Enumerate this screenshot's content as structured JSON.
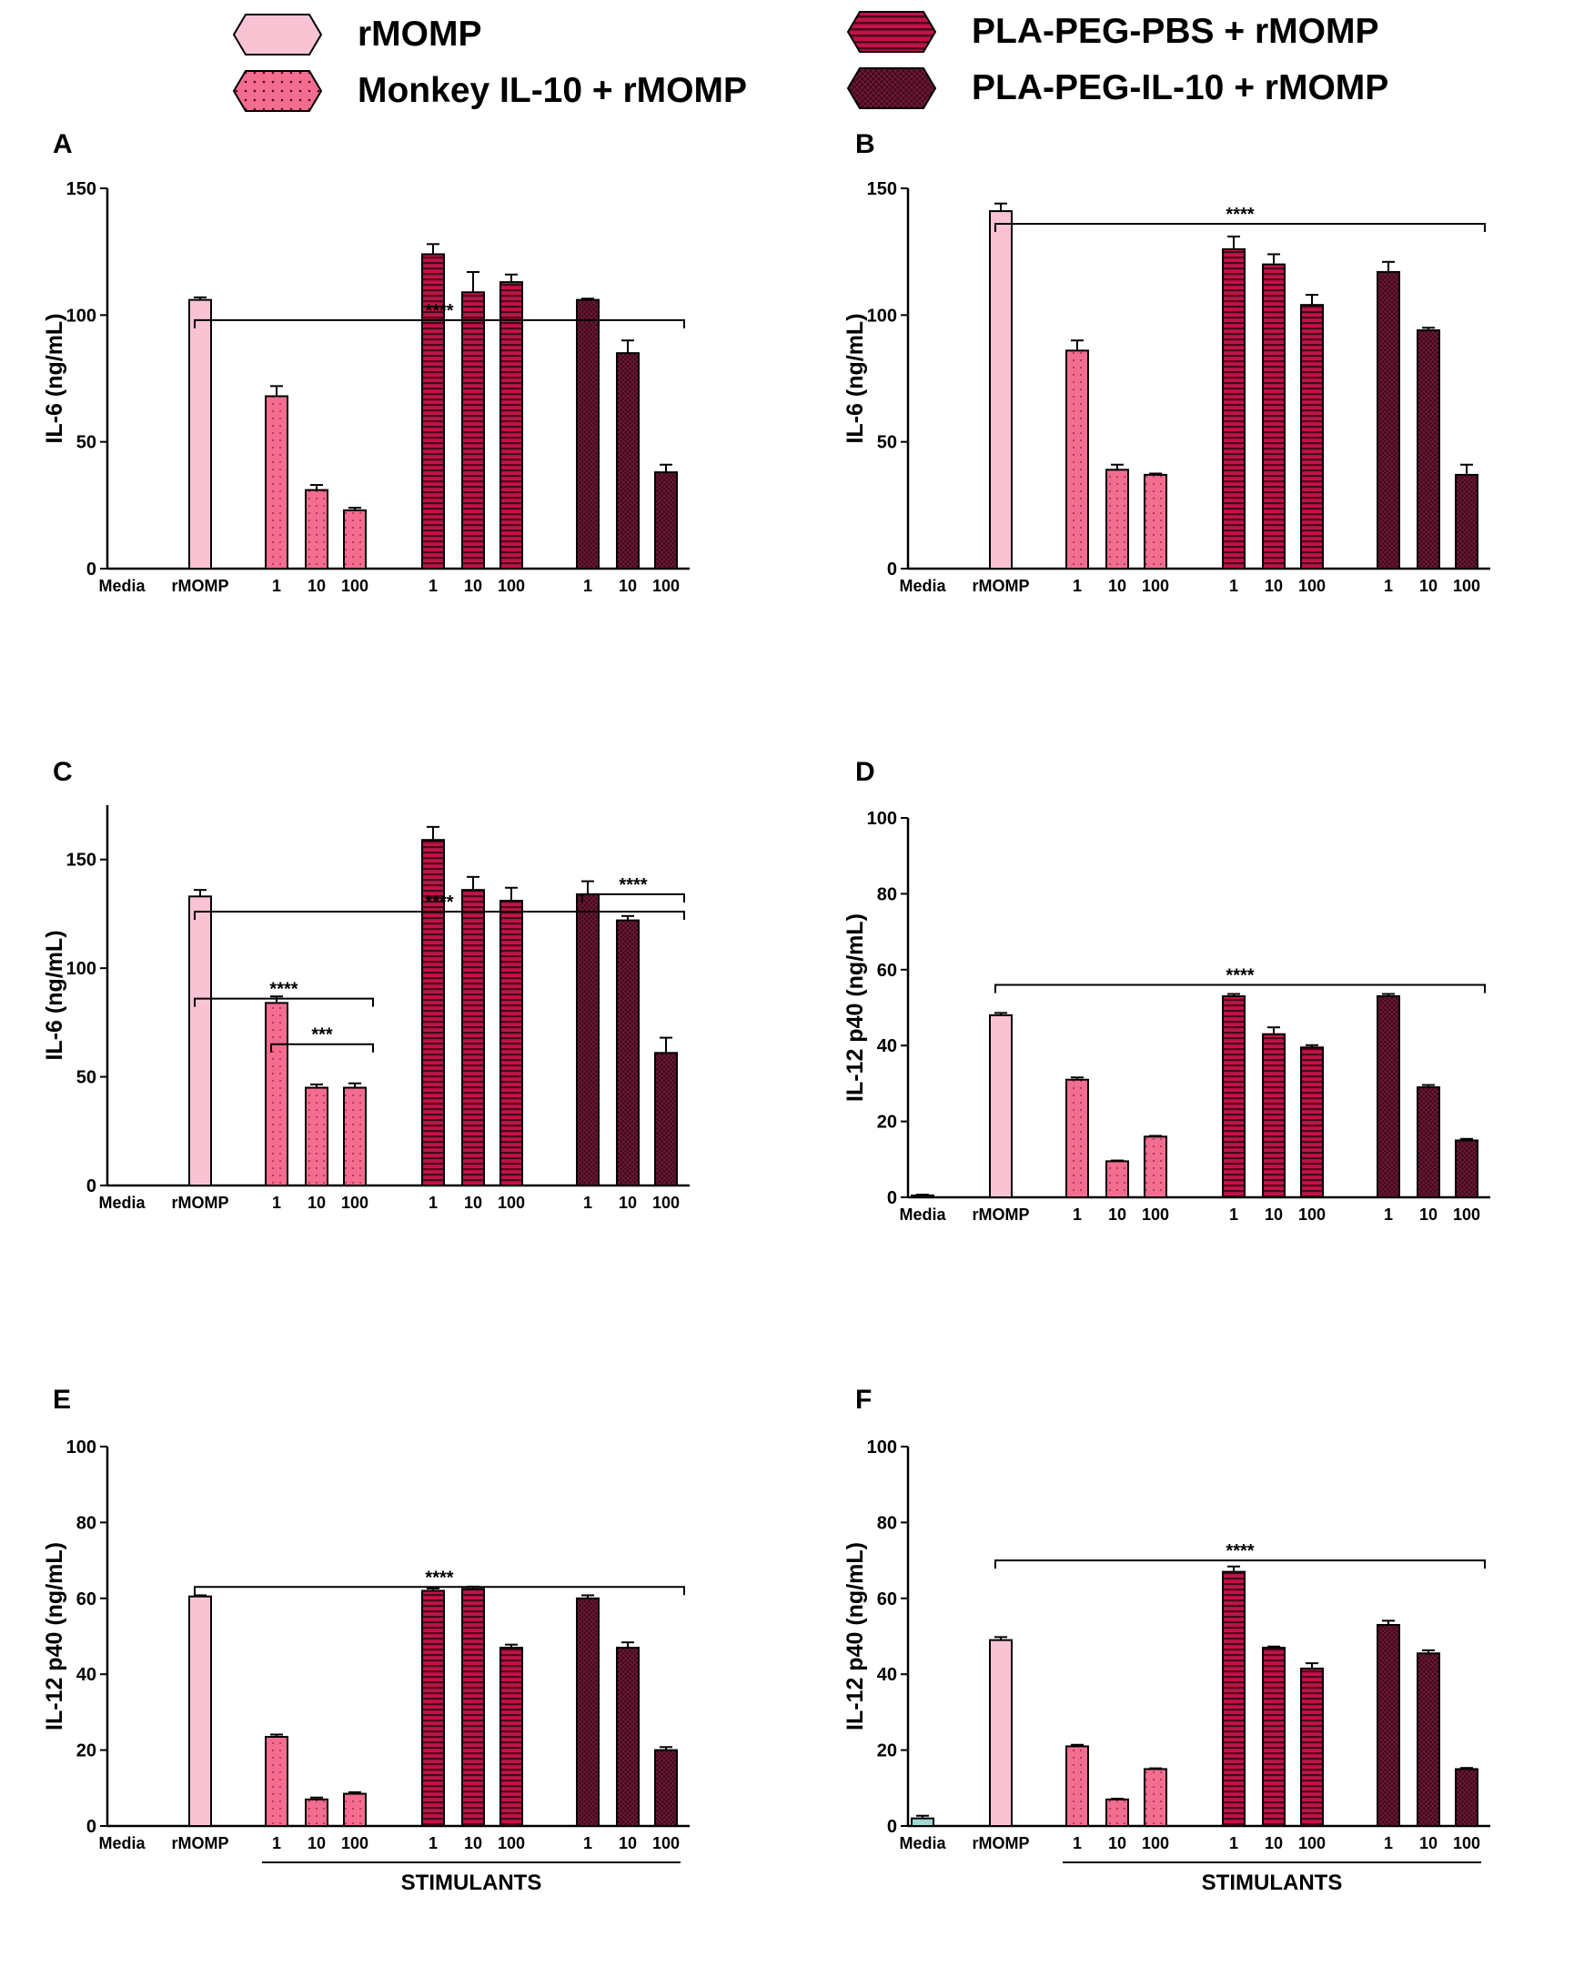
{
  "legend": [
    {
      "label": "rMOMP",
      "fill": "#f9c3d3",
      "pattern": "plain"
    },
    {
      "label": "Monkey IL-10 + rMOMP",
      "fill": "#f26d8f",
      "pattern": "dots"
    },
    {
      "label": "PLA-PEG-PBS + rMOMP",
      "fill": "#c0134a",
      "pattern": "stripes"
    },
    {
      "label": "PLA-PEG-IL-10 + rMOMP",
      "fill": "#3d0a1c",
      "pattern": "cross"
    }
  ],
  "colors": {
    "rmomp": "#f9c3d3",
    "il10": "#f26d8f",
    "plapbs": "#c0134a",
    "plail10": "#3d0a1c",
    "media": "#9fd8d2"
  },
  "chart_data": [
    {
      "panel": "A",
      "type": "bar",
      "ylabel": "IL-6 (ng/mL)",
      "ylim": [
        0,
        150
      ],
      "yticks": [
        0,
        50,
        100,
        150
      ],
      "categories": [
        "Media",
        "rMOMP",
        "1",
        "10",
        "100",
        "1",
        "10",
        "100",
        "1",
        "10",
        "100"
      ],
      "groups": [
        "media",
        "rmomp",
        "il10",
        "il10",
        "il10",
        "plapbs",
        "plapbs",
        "plapbs",
        "plail10",
        "plail10",
        "plail10"
      ],
      "values": [
        0,
        106,
        68,
        31,
        23,
        124,
        109,
        113,
        106,
        85,
        38
      ],
      "errors": [
        0,
        1,
        4,
        2,
        1,
        4,
        8,
        3,
        0.5,
        5,
        3
      ],
      "annotations": [
        {
          "label": "****",
          "from": 1,
          "to": 10,
          "y": 98
        }
      ],
      "xlabel": ""
    },
    {
      "panel": "B",
      "type": "bar",
      "ylabel": "IL-6 (ng/mL)",
      "ylim": [
        0,
        150
      ],
      "yticks": [
        0,
        50,
        100,
        150
      ],
      "categories": [
        "Media",
        "rMOMP",
        "1",
        "10",
        "100",
        "1",
        "10",
        "100",
        "1",
        "10",
        "100"
      ],
      "groups": [
        "media",
        "rmomp",
        "il10",
        "il10",
        "il10",
        "plapbs",
        "plapbs",
        "plapbs",
        "plail10",
        "plail10",
        "plail10"
      ],
      "values": [
        0,
        141,
        86,
        39,
        37,
        126,
        120,
        104,
        117,
        94,
        37
      ],
      "errors": [
        0,
        3,
        4,
        2,
        0.5,
        5,
        4,
        4,
        4,
        1,
        4
      ],
      "annotations": [
        {
          "label": "****",
          "from": 1,
          "to": 10,
          "y": 136
        }
      ],
      "xlabel": ""
    },
    {
      "panel": "C",
      "type": "bar",
      "ylabel": "IL-6 (ng/mL)",
      "ylim": [
        0,
        175
      ],
      "yticks": [
        0,
        50,
        100,
        150
      ],
      "categories": [
        "Media",
        "rMOMP",
        "1",
        "10",
        "100",
        "1",
        "10",
        "100",
        "1",
        "10",
        "100"
      ],
      "groups": [
        "media",
        "rmomp",
        "il10",
        "il10",
        "il10",
        "plapbs",
        "plapbs",
        "plapbs",
        "plail10",
        "plail10",
        "plail10"
      ],
      "values": [
        0,
        133,
        84,
        45,
        45,
        159,
        136,
        131,
        134,
        122,
        61
      ],
      "errors": [
        0,
        3,
        3,
        1.5,
        2,
        6,
        6,
        6,
        6,
        2,
        7
      ],
      "annotations": [
        {
          "label": "****",
          "from": 1,
          "to": 10,
          "y": 126
        },
        {
          "label": "****",
          "from": 1,
          "to": 4,
          "y": 86
        },
        {
          "label": "***",
          "from": 2,
          "to": 4,
          "y": 65
        },
        {
          "label": "****",
          "from": 8,
          "to": 10,
          "y": 134
        }
      ],
      "xlabel": ""
    },
    {
      "panel": "D",
      "type": "bar",
      "ylabel": "IL-12 p40 (ng/mL)",
      "ylim": [
        0,
        100
      ],
      "yticks": [
        0,
        20,
        40,
        60,
        80,
        100
      ],
      "categories": [
        "Media",
        "rMOMP",
        "1",
        "10",
        "100",
        "1",
        "10",
        "100",
        "1",
        "10",
        "100"
      ],
      "groups": [
        "media",
        "rmomp",
        "il10",
        "il10",
        "il10",
        "plapbs",
        "plapbs",
        "plapbs",
        "plail10",
        "plail10",
        "plail10"
      ],
      "values": [
        0.5,
        48,
        31,
        9.5,
        16,
        53,
        43,
        39.5,
        53,
        29,
        15
      ],
      "errors": [
        0.2,
        0.6,
        0.6,
        0.2,
        0.2,
        0.6,
        1.8,
        0.6,
        0.6,
        0.6,
        0.4
      ],
      "annotations": [
        {
          "label": "****",
          "from": 1,
          "to": 10,
          "y": 56
        }
      ],
      "xlabel": ""
    },
    {
      "panel": "E",
      "type": "bar",
      "ylabel": "IL-12 p40 (ng/mL)",
      "ylim": [
        0,
        100
      ],
      "yticks": [
        0,
        20,
        40,
        60,
        80,
        100
      ],
      "categories": [
        "Media",
        "rMOMP",
        "1",
        "10",
        "100",
        "1",
        "10",
        "100",
        "1",
        "10",
        "100"
      ],
      "groups": [
        "media",
        "rmomp",
        "il10",
        "il10",
        "il10",
        "plapbs",
        "plapbs",
        "plapbs",
        "plail10",
        "plail10",
        "plail10"
      ],
      "values": [
        0,
        60.5,
        23.5,
        7,
        8.5,
        62,
        62.5,
        47,
        60,
        47,
        20
      ],
      "errors": [
        0,
        0.3,
        0.6,
        0.5,
        0.4,
        0.6,
        0.6,
        0.8,
        0.8,
        1.4,
        0.8
      ],
      "annotations": [
        {
          "label": "****",
          "from": 1,
          "to": 10,
          "y": 63
        }
      ],
      "xlabel": "STIMULANTS"
    },
    {
      "panel": "F",
      "type": "bar",
      "ylabel": "IL-12 p40 (ng/mL)",
      "ylim": [
        0,
        100
      ],
      "yticks": [
        0,
        20,
        40,
        60,
        80,
        100
      ],
      "categories": [
        "Media",
        "rMOMP",
        "1",
        "10",
        "100",
        "1",
        "10",
        "100",
        "1",
        "10",
        "100"
      ],
      "groups": [
        "media",
        "rmomp",
        "il10",
        "il10",
        "il10",
        "plapbs",
        "plapbs",
        "plapbs",
        "plail10",
        "plail10",
        "plail10"
      ],
      "values": [
        2,
        49,
        21,
        7,
        15,
        67,
        47,
        41.5,
        53,
        45.5,
        15
      ],
      "errors": [
        0.7,
        0.8,
        0.4,
        0.2,
        0.2,
        1.4,
        0.3,
        1.4,
        1.1,
        0.8,
        0.3
      ],
      "annotations": [
        {
          "label": "****",
          "from": 1,
          "to": 10,
          "y": 70
        }
      ],
      "xlabel": "STIMULANTS"
    }
  ]
}
